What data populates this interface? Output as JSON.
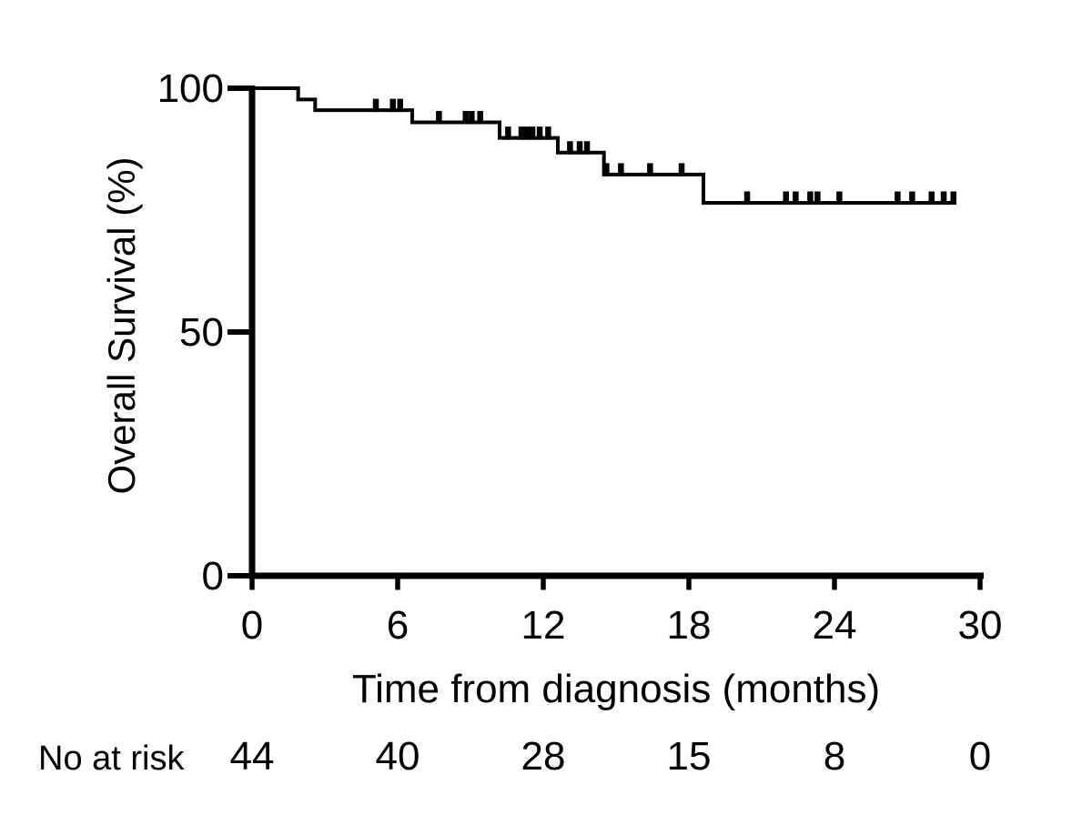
{
  "chart_data": {
    "type": "line",
    "subtype": "kaplan-meier-step",
    "title": "",
    "xlabel": "Time from diagnosis (months)",
    "ylabel": "Overall Survival (%)",
    "xlim": [
      0,
      30
    ],
    "ylim": [
      0,
      100
    ],
    "xticks": [
      0,
      6,
      12,
      18,
      24,
      30
    ],
    "yticks": [
      0,
      50,
      100
    ],
    "grid": false,
    "legend": false,
    "series": [
      {
        "name": "Overall Survival",
        "steps": [
          {
            "t": 0.0,
            "s": 100.0
          },
          {
            "t": 1.9,
            "s": 97.7
          },
          {
            "t": 2.6,
            "s": 95.5
          },
          {
            "t": 6.6,
            "s": 93.0
          },
          {
            "t": 10.2,
            "s": 89.8
          },
          {
            "t": 12.6,
            "s": 86.8
          },
          {
            "t": 14.5,
            "s": 82.3
          },
          {
            "t": 18.6,
            "s": 76.5
          }
        ],
        "end_time": 29.0,
        "censor_times": [
          5.1,
          5.8,
          6.1,
          7.7,
          8.8,
          9.05,
          9.4,
          10.55,
          11.1,
          11.32,
          11.55,
          11.85,
          12.2,
          13.1,
          13.5,
          13.8,
          14.6,
          15.2,
          16.4,
          17.7,
          20.4,
          22.0,
          22.4,
          23.0,
          23.3,
          24.2,
          26.6,
          27.2,
          28.0,
          28.5,
          28.9
        ]
      }
    ],
    "risk_table": {
      "label": "No at risk",
      "times": [
        0,
        6,
        12,
        18,
        24,
        30
      ],
      "counts": [
        44,
        40,
        28,
        15,
        8,
        0
      ]
    }
  },
  "colors": {
    "curve": "#000000",
    "axis": "#000000",
    "text": "#000000",
    "background": "#ffffff"
  }
}
